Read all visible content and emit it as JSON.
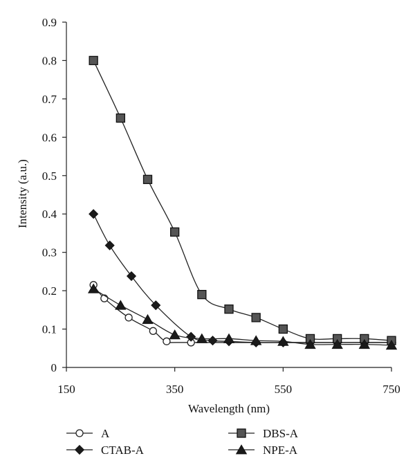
{
  "chart_data": {
    "type": "line",
    "title": "",
    "xlabel": "Wavelength (nm)",
    "ylabel": "Intensity (a.u.)",
    "xlim": [
      150,
      750
    ],
    "ylim": [
      0,
      0.9
    ],
    "xticks": [
      150,
      350,
      550,
      750
    ],
    "xtick_labels": [
      "150",
      "350",
      "550",
      "750"
    ],
    "yticks": [
      0,
      0.1,
      0.2,
      0.3,
      0.4,
      0.5,
      0.6,
      0.7,
      0.8,
      0.9
    ],
    "ytick_labels": [
      "0",
      "0.1",
      "0.2",
      "0.3",
      "0.4",
      "0.5",
      "0.6",
      "0.7",
      "0.8",
      "0.9"
    ],
    "grid": false,
    "legend_position": "bottom",
    "series": [
      {
        "name": "A",
        "marker": "open-circle",
        "color": "#111111",
        "x": [
          200,
          220,
          265,
          310,
          335,
          380,
          700,
          750
        ],
        "y": [
          0.215,
          0.18,
          0.13,
          0.095,
          0.068,
          0.065,
          0.065,
          0.065
        ]
      },
      {
        "name": "CTAB-A",
        "marker": "diamond",
        "color": "#111111",
        "x": [
          200,
          230,
          270,
          315,
          380,
          420,
          450,
          500,
          550,
          600,
          650,
          700,
          750
        ],
        "y": [
          0.4,
          0.318,
          0.238,
          0.162,
          0.08,
          0.07,
          0.068,
          0.065,
          0.065,
          0.065,
          0.065,
          0.065,
          0.065
        ]
      },
      {
        "name": "DBS-A",
        "marker": "square",
        "color": "#555555",
        "x": [
          200,
          250,
          300,
          350,
          400,
          450,
          500,
          550,
          600,
          650,
          700,
          750
        ],
        "y": [
          0.8,
          0.65,
          0.49,
          0.353,
          0.19,
          0.152,
          0.13,
          0.1,
          0.075,
          0.075,
          0.075,
          0.07
        ]
      },
      {
        "name": "NPE-A",
        "marker": "triangle",
        "color": "#111111",
        "x": [
          200,
          250,
          300,
          350,
          400,
          450,
          500,
          550,
          600,
          650,
          700,
          750
        ],
        "y": [
          0.205,
          0.162,
          0.125,
          0.085,
          0.075,
          0.075,
          0.07,
          0.068,
          0.06,
          0.06,
          0.06,
          0.058
        ]
      }
    ]
  }
}
